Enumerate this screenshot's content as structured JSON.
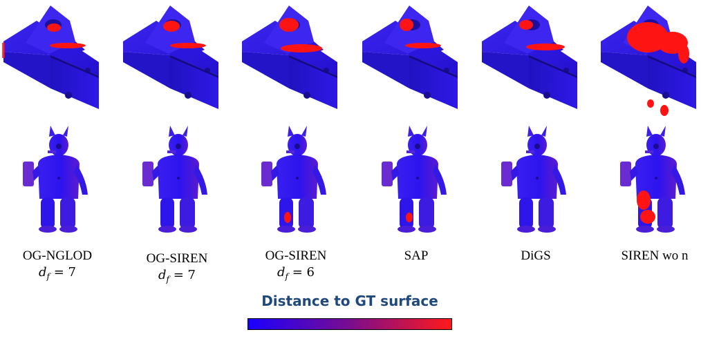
{
  "columns": [
    {
      "label": "OG-NGLOD",
      "df_value": "7"
    },
    {
      "label": "OG-SIREN",
      "df_value": "7"
    },
    {
      "label": "OG-SIREN",
      "df_value": "6"
    },
    {
      "label": "SAP",
      "df_value": ""
    },
    {
      "label": "DiGS",
      "df_value": ""
    },
    {
      "label": "SIREN wo n",
      "df_value": ""
    }
  ],
  "df_symbol": "d",
  "df_subscript": "f",
  "colorbar": {
    "title": "Distance to GT surface",
    "color_low": "#1a00ff",
    "color_mid": "#7a0d8f",
    "color_high": "#ff1a1a"
  },
  "surface_colors": {
    "base": "#2a16e6",
    "dark": "#1b0fa6",
    "error": "#ff1414"
  }
}
